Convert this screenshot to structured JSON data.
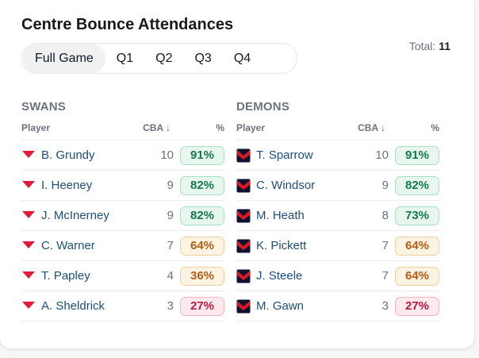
{
  "title": "Centre Bounce Attendances",
  "total": {
    "label": "Total:",
    "value": "11"
  },
  "tabs": [
    {
      "label": "Full Game",
      "active": true
    },
    {
      "label": "Q1",
      "active": false
    },
    {
      "label": "Q2",
      "active": false
    },
    {
      "label": "Q3",
      "active": false
    },
    {
      "label": "Q4",
      "active": false
    }
  ],
  "columns": {
    "player": "Player",
    "cba": "CBA ↓",
    "pct": "%"
  },
  "teams": [
    {
      "name": "SWANS",
      "logo_icon": "swans-logo-icon",
      "colors": {
        "primary": "#e21937"
      },
      "players": [
        {
          "name": "B. Grundy",
          "cba": "10",
          "pct": "91%",
          "level": "hi"
        },
        {
          "name": "I. Heeney",
          "cba": "9",
          "pct": "82%",
          "level": "hi"
        },
        {
          "name": "J. McInerney",
          "cba": "9",
          "pct": "82%",
          "level": "hi"
        },
        {
          "name": "C. Warner",
          "cba": "7",
          "pct": "64%",
          "level": "mid"
        },
        {
          "name": "T. Papley",
          "cba": "4",
          "pct": "36%",
          "level": "mid"
        },
        {
          "name": "A. Sheldrick",
          "cba": "3",
          "pct": "27%",
          "level": "lo"
        }
      ]
    },
    {
      "name": "DEMONS",
      "logo_icon": "demons-logo-icon",
      "colors": {
        "primary": "#0f1131",
        "secondary": "#d71920"
      },
      "players": [
        {
          "name": "T. Sparrow",
          "cba": "10",
          "pct": "91%",
          "level": "hi"
        },
        {
          "name": "C. Windsor",
          "cba": "9",
          "pct": "82%",
          "level": "hi"
        },
        {
          "name": "M. Heath",
          "cba": "8",
          "pct": "73%",
          "level": "hi"
        },
        {
          "name": "K. Pickett",
          "cba": "7",
          "pct": "64%",
          "level": "mid"
        },
        {
          "name": "J. Steele",
          "cba": "7",
          "pct": "64%",
          "level": "mid"
        },
        {
          "name": "M. Gawn",
          "cba": "3",
          "pct": "27%",
          "level": "lo"
        }
      ]
    }
  ]
}
